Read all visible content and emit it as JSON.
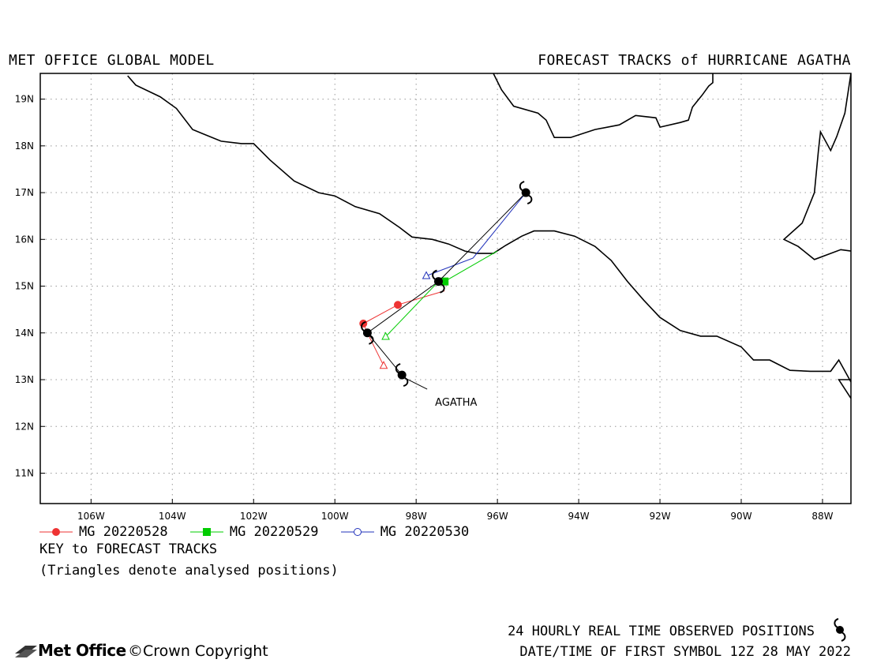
{
  "header": {
    "left_title": "MET OFFICE GLOBAL MODEL",
    "right_title": "FORECAST TRACKS of HURRICANE AGATHA"
  },
  "map": {
    "lon_range": [
      -107.25,
      -87.3
    ],
    "lat_range": [
      10.35,
      19.55
    ],
    "lon_ticks": [
      {
        "value": -106,
        "label": "106W"
      },
      {
        "value": -104,
        "label": "104W"
      },
      {
        "value": -102,
        "label": "102W"
      },
      {
        "value": -100,
        "label": "100W"
      },
      {
        "value": -98,
        "label": "98W"
      },
      {
        "value": -96,
        "label": "96W"
      },
      {
        "value": -94,
        "label": "94W"
      },
      {
        "value": -92,
        "label": "92W"
      },
      {
        "value": -90,
        "label": "90W"
      },
      {
        "value": -88,
        "label": "88W"
      }
    ],
    "lat_ticks": [
      {
        "value": 11,
        "label": "11N"
      },
      {
        "value": 12,
        "label": "12N"
      },
      {
        "value": 13,
        "label": "13N"
      },
      {
        "value": 14,
        "label": "14N"
      },
      {
        "value": 15,
        "label": "15N"
      },
      {
        "value": 16,
        "label": "16N"
      },
      {
        "value": 17,
        "label": "17N"
      },
      {
        "value": 18,
        "label": "18N"
      },
      {
        "value": 19,
        "label": "19N"
      }
    ],
    "grid": true,
    "coastlines": [
      [
        [
          -105.1,
          19.5
        ],
        [
          -104.9,
          19.3
        ],
        [
          -104.3,
          19.05
        ],
        [
          -103.9,
          18.8
        ],
        [
          -103.5,
          18.35
        ],
        [
          -102.8,
          18.1
        ],
        [
          -102.3,
          18.05
        ],
        [
          -102.0,
          18.05
        ],
        [
          -101.6,
          17.7
        ],
        [
          -101.0,
          17.25
        ],
        [
          -100.4,
          17.0
        ],
        [
          -100.0,
          16.93
        ],
        [
          -99.5,
          16.7
        ],
        [
          -98.9,
          16.55
        ],
        [
          -98.4,
          16.25
        ],
        [
          -98.1,
          16.05
        ],
        [
          -97.6,
          16.0
        ],
        [
          -97.2,
          15.9
        ],
        [
          -96.8,
          15.75
        ],
        [
          -96.5,
          15.7
        ],
        [
          -96.1,
          15.7
        ],
        [
          -95.8,
          15.87
        ],
        [
          -95.4,
          16.07
        ],
        [
          -95.1,
          16.18
        ],
        [
          -94.6,
          16.18
        ],
        [
          -94.1,
          16.07
        ],
        [
          -93.6,
          15.85
        ],
        [
          -93.2,
          15.55
        ],
        [
          -92.8,
          15.1
        ],
        [
          -92.4,
          14.7
        ],
        [
          -92.0,
          14.33
        ],
        [
          -91.5,
          14.05
        ],
        [
          -91.0,
          13.93
        ],
        [
          -90.6,
          13.93
        ],
        [
          -90.0,
          13.7
        ],
        [
          -89.7,
          13.42
        ],
        [
          -89.3,
          13.42
        ],
        [
          -88.8,
          13.2
        ],
        [
          -88.3,
          13.18
        ],
        [
          -87.8,
          13.18
        ],
        [
          -87.6,
          13.42
        ],
        [
          -87.3,
          12.95
        ]
      ],
      [
        [
          -96.1,
          19.55
        ],
        [
          -95.9,
          19.2
        ],
        [
          -95.6,
          18.85
        ],
        [
          -95.0,
          18.7
        ],
        [
          -94.8,
          18.55
        ],
        [
          -94.6,
          18.18
        ],
        [
          -94.2,
          18.18
        ],
        [
          -93.6,
          18.35
        ],
        [
          -93.0,
          18.45
        ],
        [
          -92.6,
          18.65
        ],
        [
          -92.1,
          18.6
        ],
        [
          -92.0,
          18.4
        ],
        [
          -91.5,
          18.5
        ],
        [
          -91.3,
          18.55
        ],
        [
          -91.2,
          18.83
        ],
        [
          -90.95,
          19.1
        ],
        [
          -90.8,
          19.28
        ],
        [
          -90.7,
          19.35
        ],
        [
          -90.7,
          19.55
        ]
      ],
      [
        [
          -87.3,
          19.55
        ],
        [
          -87.45,
          18.7
        ],
        [
          -87.65,
          18.2
        ],
        [
          -87.8,
          17.9
        ],
        [
          -88.05,
          18.3
        ],
        [
          -88.1,
          17.9
        ],
        [
          -88.2,
          17.0
        ],
        [
          -88.5,
          16.35
        ],
        [
          -88.95,
          16.0
        ],
        [
          -88.6,
          15.85
        ],
        [
          -88.2,
          15.57
        ],
        [
          -87.55,
          15.78
        ],
        [
          -87.3,
          15.75
        ]
      ],
      [
        [
          -87.3,
          12.6
        ],
        [
          -87.6,
          13.0
        ],
        [
          -87.3,
          13.0
        ]
      ]
    ],
    "storm_label": "AGATHA",
    "observed_positions": [
      {
        "lon": -98.35,
        "lat": 13.1
      },
      {
        "lon": -99.2,
        "lat": 14.0
      },
      {
        "lon": -97.45,
        "lat": 15.1
      },
      {
        "lon": -95.3,
        "lat": 17.0
      }
    ],
    "observed_track_color": "#000000"
  },
  "tracks": [
    {
      "name": "MG 20220528",
      "color": "#ee3333",
      "marker": "filled-circle",
      "points": [
        {
          "lon": -99.3,
          "lat": 14.2
        },
        {
          "lon": -98.45,
          "lat": 14.6
        },
        {
          "lon": -97.3,
          "lat": 14.9
        }
      ],
      "analysed": {
        "lon": -98.8,
        "lat": 13.3
      }
    },
    {
      "name": "MG 20220529",
      "color": "#00cc00",
      "marker": "filled-square",
      "points": [
        {
          "lon": -97.3,
          "lat": 15.1
        },
        {
          "lon": -96.0,
          "lat": 15.75
        }
      ],
      "analysed": {
        "lon": -98.75,
        "lat": 13.92
      }
    },
    {
      "name": "MG 20220530",
      "color": "#2233bb",
      "marker": "open-circle",
      "points": [
        {
          "lon": -96.6,
          "lat": 15.6
        }
      ],
      "analysed": {
        "lon": -97.75,
        "lat": 15.22
      }
    }
  ],
  "key": {
    "title": "KEY to FORECAST TRACKS",
    "note": "(Triangles denote analysed positions)"
  },
  "footer": {
    "observed_note": "24 HOURLY REAL TIME OBSERVED POSITIONS",
    "first_symbol": "DATE/TIME OF FIRST SYMBOL 12Z 28 MAY 2022",
    "logo_text": "Met Office",
    "copyright": "©Crown Copyright"
  }
}
